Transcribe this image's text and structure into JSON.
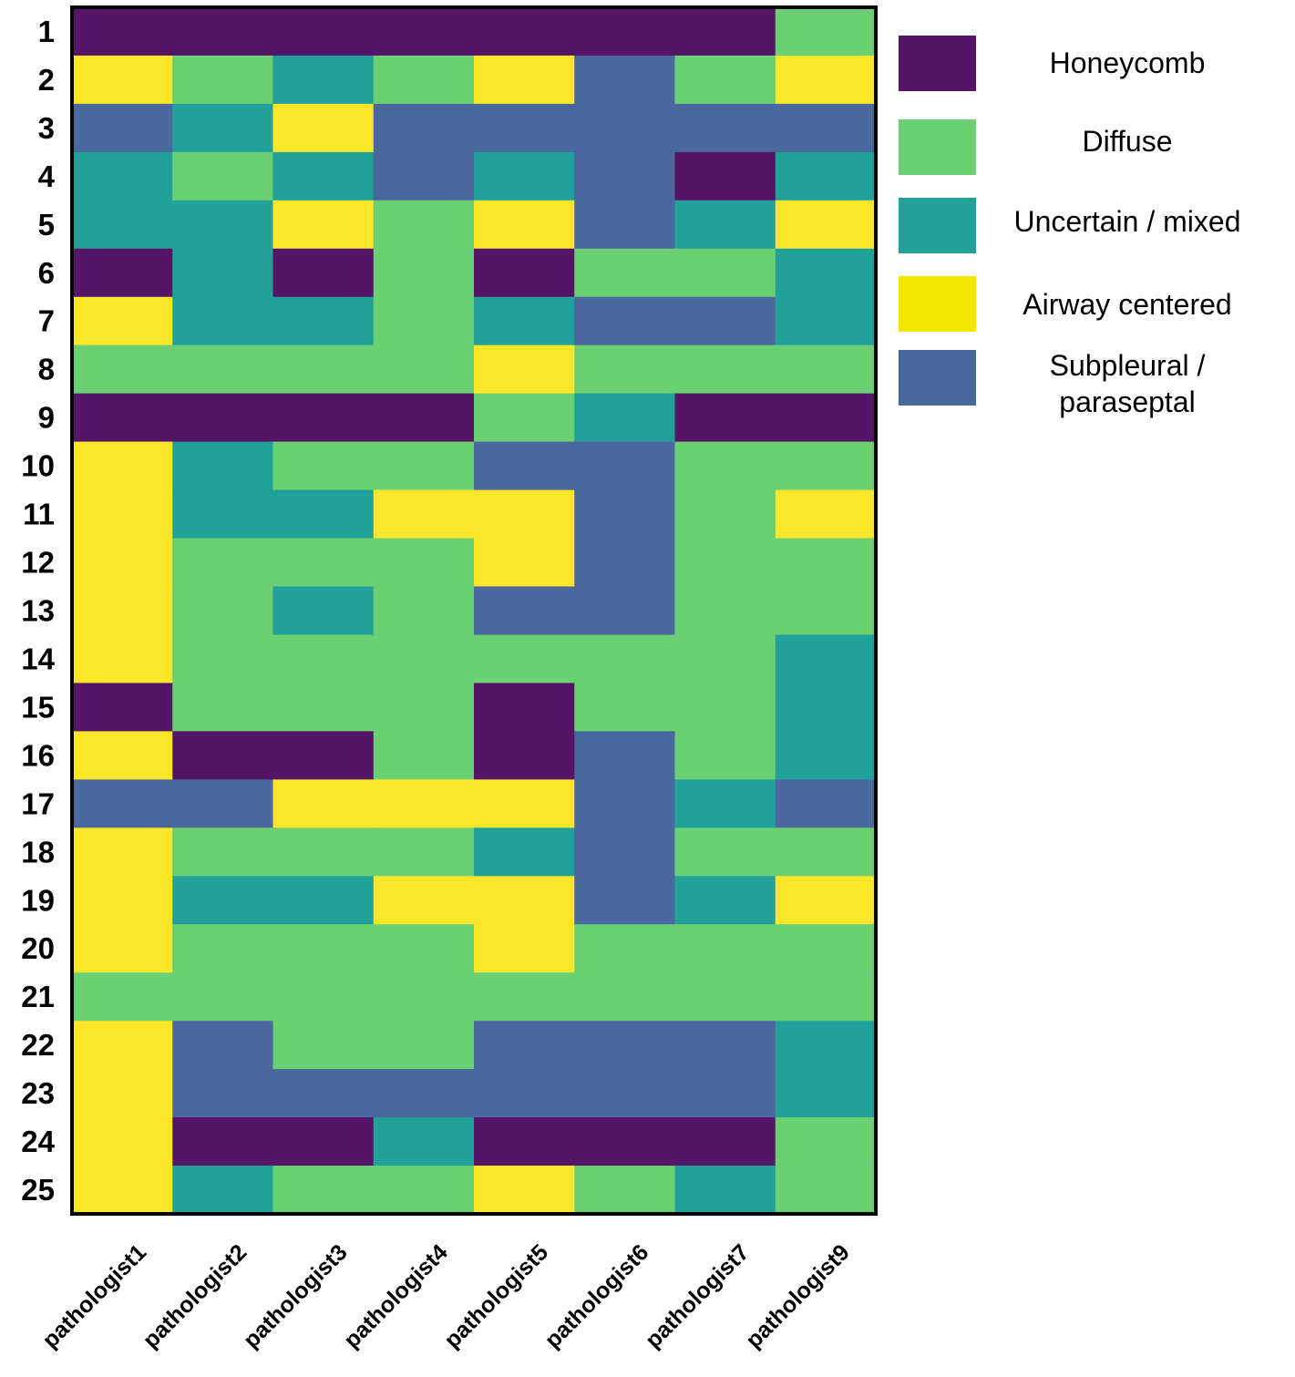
{
  "chart_data": {
    "type": "heatmap",
    "title": "",
    "xlabel": "",
    "ylabel": "",
    "rows": [
      "1",
      "2",
      "3",
      "4",
      "5",
      "6",
      "7",
      "8",
      "9",
      "10",
      "11",
      "12",
      "13",
      "14",
      "15",
      "16",
      "17",
      "18",
      "19",
      "20",
      "21",
      "22",
      "23",
      "24",
      "25"
    ],
    "columns": [
      "pathologist1",
      "pathologist2",
      "pathologist3",
      "pathologist4",
      "pathologist5",
      "pathologist6",
      "pathologist7",
      "pathologist9"
    ],
    "categories": [
      {
        "key": "H",
        "name": "Honeycomb",
        "color": "#541567"
      },
      {
        "key": "D",
        "name": "Diffuse",
        "color": "#6bcf74"
      },
      {
        "key": "U",
        "name": "Uncertain / mixed",
        "color": "#22a19a"
      },
      {
        "key": "A",
        "name": "Airway centered",
        "color": "#fce62a"
      },
      {
        "key": "S",
        "name": "Subpleural / paraseptal",
        "color": "#4a679e"
      }
    ],
    "legend": {
      "position": "right",
      "items": [
        {
          "key": "H",
          "color": "#541567",
          "lines": [
            "Honeycomb"
          ]
        },
        {
          "key": "D",
          "color": "#6bcf74",
          "lines": [
            "Diffuse"
          ]
        },
        {
          "key": "U",
          "color": "#22a19a",
          "lines": [
            "Uncertain / mixed"
          ]
        },
        {
          "key": "A",
          "color": "#f5e600",
          "lines": [
            "Airway centered"
          ]
        },
        {
          "key": "S",
          "color": "#4a679e",
          "lines": [
            "Subpleural /",
            "paraseptal"
          ]
        }
      ]
    },
    "values": [
      [
        "H",
        "H",
        "H",
        "H",
        "H",
        "H",
        "H",
        "D"
      ],
      [
        "A",
        "D",
        "U",
        "D",
        "A",
        "S",
        "D",
        "A"
      ],
      [
        "S",
        "U",
        "A",
        "S",
        "S",
        "S",
        "S",
        "S"
      ],
      [
        "U",
        "D",
        "U",
        "S",
        "U",
        "S",
        "H",
        "U"
      ],
      [
        "U",
        "U",
        "A",
        "D",
        "A",
        "S",
        "U",
        "A"
      ],
      [
        "H",
        "U",
        "H",
        "D",
        "H",
        "D",
        "D",
        "U"
      ],
      [
        "A",
        "U",
        "U",
        "D",
        "U",
        "S",
        "S",
        "U"
      ],
      [
        "D",
        "D",
        "D",
        "D",
        "A",
        "D",
        "D",
        "D"
      ],
      [
        "H",
        "H",
        "H",
        "H",
        "D",
        "U",
        "H",
        "H"
      ],
      [
        "A",
        "U",
        "D",
        "D",
        "S",
        "S",
        "D",
        "D"
      ],
      [
        "A",
        "U",
        "U",
        "A",
        "A",
        "S",
        "D",
        "A"
      ],
      [
        "A",
        "D",
        "D",
        "D",
        "A",
        "S",
        "D",
        "D"
      ],
      [
        "A",
        "D",
        "U",
        "D",
        "S",
        "S",
        "D",
        "D"
      ],
      [
        "A",
        "D",
        "D",
        "D",
        "D",
        "D",
        "D",
        "U"
      ],
      [
        "H",
        "D",
        "D",
        "D",
        "H",
        "D",
        "D",
        "U"
      ],
      [
        "A",
        "H",
        "H",
        "D",
        "H",
        "S",
        "D",
        "U"
      ],
      [
        "S",
        "S",
        "A",
        "A",
        "A",
        "S",
        "U",
        "S"
      ],
      [
        "A",
        "D",
        "D",
        "D",
        "U",
        "S",
        "D",
        "D"
      ],
      [
        "A",
        "U",
        "U",
        "A",
        "A",
        "S",
        "U",
        "A"
      ],
      [
        "A",
        "D",
        "D",
        "D",
        "A",
        "D",
        "D",
        "D"
      ],
      [
        "D",
        "D",
        "D",
        "D",
        "D",
        "D",
        "D",
        "D"
      ],
      [
        "A",
        "S",
        "D",
        "D",
        "S",
        "S",
        "S",
        "U"
      ],
      [
        "A",
        "S",
        "S",
        "S",
        "S",
        "S",
        "S",
        "U"
      ],
      [
        "A",
        "H",
        "H",
        "U",
        "H",
        "H",
        "H",
        "D"
      ],
      [
        "A",
        "U",
        "D",
        "D",
        "A",
        "D",
        "U",
        "D"
      ]
    ]
  }
}
